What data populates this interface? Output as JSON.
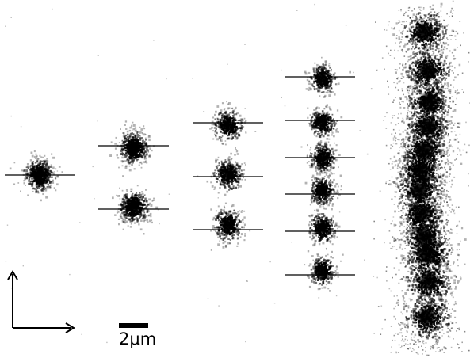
{
  "scale_bar": {
    "label": "2μm"
  },
  "colors": {
    "ink": "#000000",
    "background": "#ffffff"
  },
  "groups": [
    {
      "id": "single-ion",
      "count": 1
    },
    {
      "id": "two-ions",
      "count": 2
    },
    {
      "id": "three-ions",
      "count": 3
    },
    {
      "id": "six-ions",
      "count": 6
    },
    {
      "id": "long-chain",
      "count": 12
    }
  ]
}
